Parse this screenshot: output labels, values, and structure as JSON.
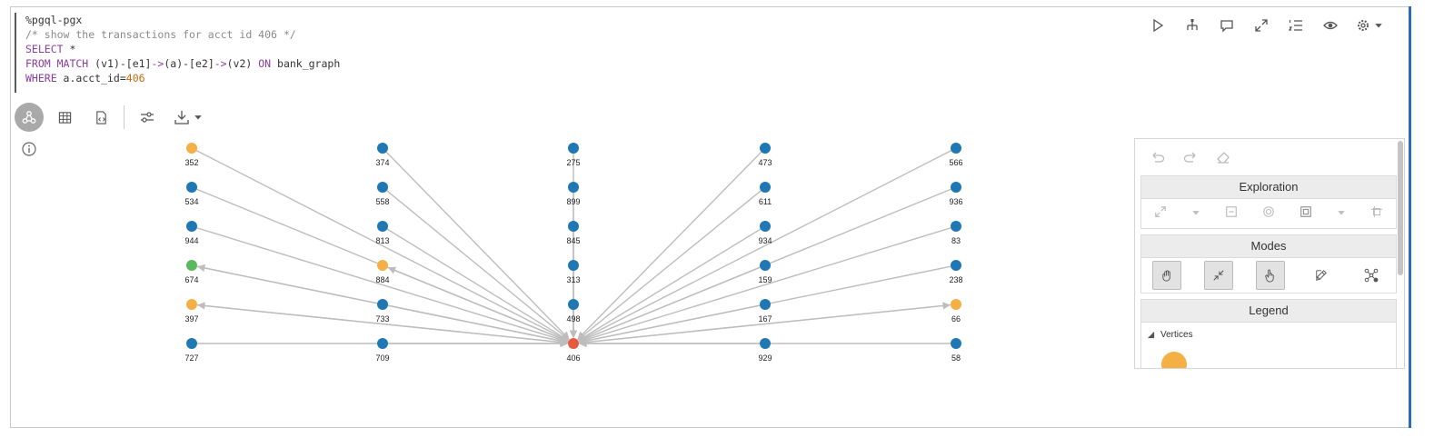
{
  "code": {
    "line1": "%pgql-pgx",
    "line2": "/* show the transactions for acct id 406 */",
    "line3_kw": "SELECT",
    "line3_rest": " *",
    "line4_kw": "FROM MATCH",
    "line4_a": " (v1)-[e1]",
    "line4_arrow1": "->",
    "line4_b": "(a)-[e2]",
    "line4_arrow2": "->",
    "line4_c": "(v2) ",
    "line4_on": "ON",
    "line4_d": " bank_graph",
    "line5_kw": "WHERE",
    "line5_a": " a.acct_id=",
    "line5_num": "406"
  },
  "top_toolbar": [
    "run-icon",
    "hierarchy-icon",
    "comment-icon",
    "expand-icon",
    "list-icon",
    "eye-icon",
    "gear-icon"
  ],
  "view_toolbar": [
    "graph-icon",
    "table-icon",
    "code-file-icon",
    "settings-sliders-icon",
    "download-icon"
  ],
  "colors": {
    "blue": "#1f77b4",
    "orange": "#f4b044",
    "green": "#5cb85c",
    "red": "#e8593f",
    "edge": "#bdbdbd",
    "accent": "#2a6ebb"
  },
  "graph": {
    "center": "406",
    "nodes": [
      {
        "id": "352",
        "color": "orange"
      },
      {
        "id": "534",
        "color": "blue"
      },
      {
        "id": "944",
        "color": "blue"
      },
      {
        "id": "674",
        "color": "green"
      },
      {
        "id": "397",
        "color": "orange"
      },
      {
        "id": "727",
        "color": "blue"
      },
      {
        "id": "374",
        "color": "blue"
      },
      {
        "id": "558",
        "color": "blue"
      },
      {
        "id": "813",
        "color": "blue"
      },
      {
        "id": "884",
        "color": "orange"
      },
      {
        "id": "733",
        "color": "blue"
      },
      {
        "id": "709",
        "color": "blue"
      },
      {
        "id": "275",
        "color": "blue"
      },
      {
        "id": "899",
        "color": "blue"
      },
      {
        "id": "845",
        "color": "blue"
      },
      {
        "id": "313",
        "color": "blue"
      },
      {
        "id": "498",
        "color": "blue"
      },
      {
        "id": "406",
        "color": "red"
      },
      {
        "id": "473",
        "color": "blue"
      },
      {
        "id": "611",
        "color": "blue"
      },
      {
        "id": "934",
        "color": "blue"
      },
      {
        "id": "159",
        "color": "blue"
      },
      {
        "id": "167",
        "color": "blue"
      },
      {
        "id": "929",
        "color": "blue"
      },
      {
        "id": "566",
        "color": "blue"
      },
      {
        "id": "936",
        "color": "blue"
      },
      {
        "id": "83",
        "color": "blue"
      },
      {
        "id": "238",
        "color": "blue"
      },
      {
        "id": "66",
        "color": "orange"
      },
      {
        "id": "58",
        "color": "blue"
      }
    ],
    "edges_to_center": [
      "352",
      "534",
      "944",
      "674",
      "397",
      "727",
      "374",
      "558",
      "813",
      "884",
      "733",
      "709",
      "275",
      "899",
      "845",
      "313",
      "498",
      "473",
      "611",
      "934",
      "159",
      "167",
      "929",
      "566",
      "936",
      "83",
      "238",
      "66",
      "58"
    ],
    "edges_from_center": [
      "674",
      "397",
      "884",
      "66"
    ]
  },
  "panel": {
    "exploration": "Exploration",
    "modes": "Modes",
    "legend": "Legend",
    "vertices": "Vertices"
  }
}
